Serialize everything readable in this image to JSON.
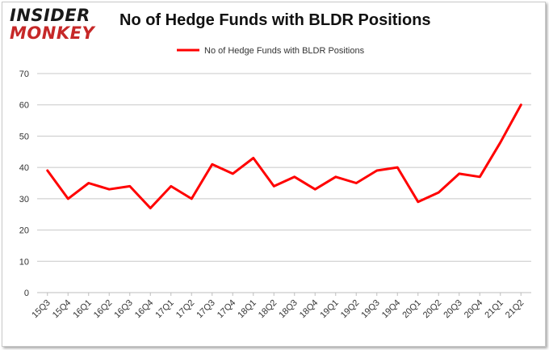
{
  "logo": {
    "line1": "INSIDER",
    "line2": "MONKEY"
  },
  "title": "No of Hedge Funds with BLDR Positions",
  "chart_data": {
    "type": "line",
    "categories": [
      "15Q3",
      "15Q4",
      "16Q1",
      "16Q2",
      "16Q3",
      "16Q4",
      "17Q1",
      "17Q2",
      "17Q3",
      "17Q4",
      "18Q1",
      "18Q2",
      "18Q3",
      "18Q4",
      "19Q1",
      "19Q2",
      "19Q3",
      "19Q4",
      "20Q1",
      "20Q2",
      "20Q3",
      "20Q4",
      "21Q1",
      "21Q2"
    ],
    "series": [
      {
        "name": "No of Hedge Funds with BLDR Positions",
        "color": "#ff0000",
        "values": [
          39,
          30,
          35,
          33,
          34,
          27,
          34,
          30,
          41,
          38,
          43,
          34,
          37,
          33,
          37,
          35,
          39,
          40,
          29,
          32,
          38,
          37,
          48,
          60
        ]
      }
    ],
    "yticks": [
      0,
      10,
      20,
      30,
      40,
      50,
      60,
      70
    ],
    "ylim": [
      0,
      70
    ],
    "grid": true,
    "legend_position": "top-center"
  }
}
